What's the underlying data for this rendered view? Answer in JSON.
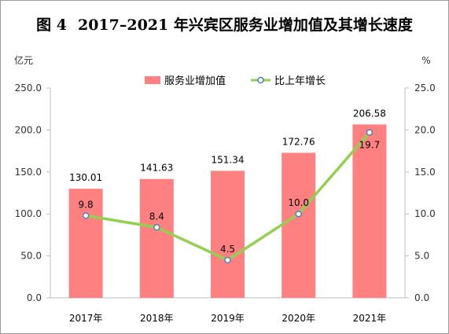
{
  "title": {
    "figure_number": "图 4",
    "text": "2017–2021 年兴宾区服务业增加值及其增长速度"
  },
  "chart_data": {
    "type": "bar",
    "categories": [
      "2017年",
      "2018年",
      "2019年",
      "2020年",
      "2021年"
    ],
    "series": [
      {
        "name": "服务业增加值",
        "type": "bar",
        "axis": "left",
        "color": "#ff8080",
        "values": [
          130.01,
          141.63,
          151.34,
          172.76,
          206.58
        ],
        "labels": [
          "130.01",
          "141.63",
          "151.34",
          "172.76",
          "206.58"
        ]
      },
      {
        "name": "比上年增长",
        "type": "line",
        "axis": "right",
        "color": "#92d050",
        "marker_color": "#4f81bd",
        "values": [
          9.8,
          8.4,
          4.5,
          10.0,
          19.7
        ],
        "labels": [
          "9.8",
          "8.4",
          "4.5",
          "10.0",
          "19.7"
        ]
      }
    ],
    "y_left": {
      "unit": "亿元",
      "min": 0,
      "max": 250,
      "ticks": [
        "0.0",
        "50.0",
        "100.0",
        "150.0",
        "200.0",
        "250.0"
      ]
    },
    "y_right": {
      "unit": "%",
      "min": 0,
      "max": 25,
      "ticks": [
        "0.0",
        "5.0",
        "10.0",
        "15.0",
        "20.0",
        "25.0"
      ]
    },
    "grid": false,
    "legend_position": "top-center"
  }
}
